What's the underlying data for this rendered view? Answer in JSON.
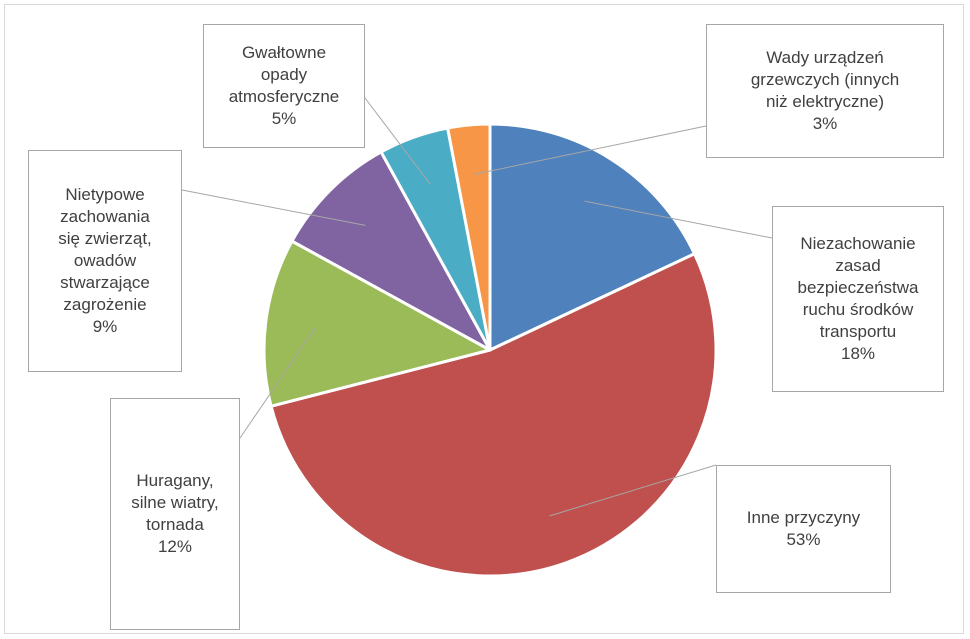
{
  "chart_data": {
    "type": "pie",
    "title": "",
    "start_angle_deg": 0,
    "direction": "clockwise",
    "slices": [
      {
        "label": "Niezachowanie\nzasad\nbezpieczeństwa\nruchu środków\ntransportu",
        "value": 18,
        "pct_label": "18%",
        "color": "#4F81BD"
      },
      {
        "label": "Inne przyczyny",
        "value": 53,
        "pct_label": "53%",
        "color": "#C0504D"
      },
      {
        "label": "Huragany,\nsilne wiatry,\ntornada",
        "value": 12,
        "pct_label": "12%",
        "color": "#9BBB59"
      },
      {
        "label": "Nietypowe\nzachowania\nsię zwierząt,\nowadów\nstwarzające\nzagrożenie",
        "value": 9,
        "pct_label": "9%",
        "color": "#8064A2"
      },
      {
        "label": "Gwałtowne\nopady\natmosferyczne",
        "value": 5,
        "pct_label": "5%",
        "color": "#4BACC6"
      },
      {
        "label": "Wady urządzeń\ngrzewczych (innych\nniż elektryczne)",
        "value": 3,
        "pct_label": "3%",
        "color": "#F79646"
      }
    ],
    "legend": "none",
    "grid": false
  }
}
